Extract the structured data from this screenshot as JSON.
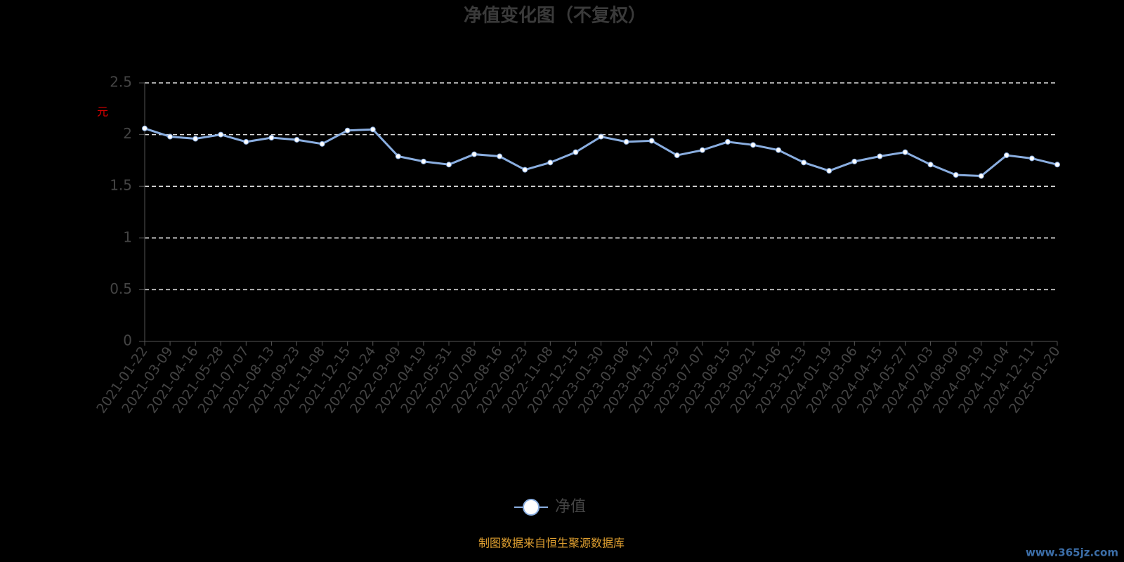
{
  "chart_data": {
    "type": "line",
    "title": "净值变化图（不复权）",
    "y_label": "元",
    "categories": [
      "2021-01-22",
      "2021-03-09",
      "2021-04-16",
      "2021-05-28",
      "2021-07-07",
      "2021-08-13",
      "2021-09-23",
      "2021-11-08",
      "2021-12-15",
      "2022-01-24",
      "2022-03-09",
      "2022-04-19",
      "2022-05-31",
      "2022-07-08",
      "2022-08-16",
      "2022-09-23",
      "2022-11-08",
      "2022-12-15",
      "2023-01-30",
      "2023-03-08",
      "2023-04-17",
      "2023-05-29",
      "2023-07-07",
      "2023-08-15",
      "2023-09-21",
      "2023-11-06",
      "2023-12-13",
      "2024-01-19",
      "2024-03-06",
      "2024-04-15",
      "2024-05-27",
      "2024-07-03",
      "2024-08-09",
      "2024-09-19",
      "2024-11-04",
      "2024-12-11",
      "2025-01-20"
    ],
    "series": [
      {
        "name": "净值",
        "color": "#8aaee0",
        "values": [
          2.06,
          1.98,
          1.96,
          2.0,
          1.93,
          1.97,
          1.95,
          1.91,
          2.04,
          2.05,
          1.79,
          1.74,
          1.71,
          1.81,
          1.79,
          1.66,
          1.73,
          1.83,
          1.98,
          1.93,
          1.94,
          1.8,
          1.85,
          1.93,
          1.9,
          1.85,
          1.73,
          1.65,
          1.74,
          1.79,
          1.83,
          1.71,
          1.61,
          1.6,
          1.8,
          1.77,
          1.71
        ]
      }
    ],
    "ylim": [
      0,
      2.5
    ],
    "yticks": [
      0,
      0.5,
      1,
      1.5,
      2,
      2.5
    ],
    "grid": true,
    "source": "制图数据来自恒生聚源数据库",
    "watermark": "www.365jz.com"
  }
}
